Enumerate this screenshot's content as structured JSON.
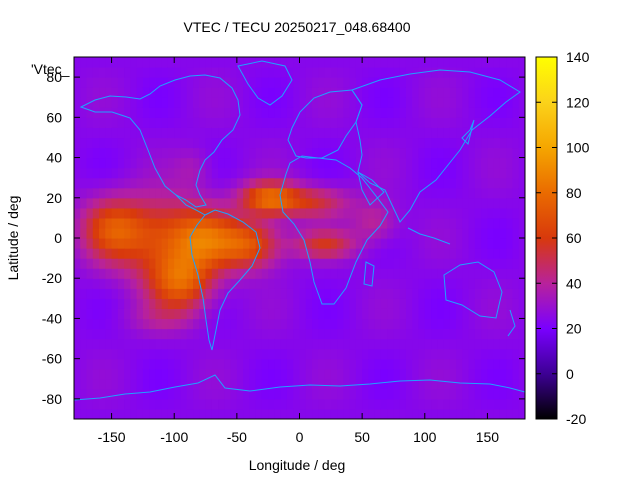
{
  "chart_data": {
    "type": "heatmap",
    "title": "VTEC / TECU 20250217_048.68400",
    "xlabel": "Longitude / deg",
    "ylabel": "Latitude / deg",
    "xlim": [
      -180,
      180
    ],
    "ylim": [
      -90,
      90
    ],
    "x_ticks": [
      -150,
      -100,
      -50,
      0,
      50,
      100,
      150
    ],
    "y_ticks": [
      -80,
      -60,
      -40,
      -20,
      0,
      20,
      40,
      60,
      80
    ],
    "x_tick_labels": [
      "-150",
      "-100",
      "-50",
      "0",
      "50",
      "100",
      "150"
    ],
    "y_tick_labels": [
      "-80",
      "-60",
      "-40",
      "-20",
      "0",
      "20",
      "40",
      "60",
      "80"
    ],
    "colorbar": {
      "range": [
        -20,
        140
      ],
      "ticks": [
        -20,
        0,
        20,
        40,
        60,
        80,
        100,
        120,
        140
      ],
      "tick_labels": [
        "-20",
        "0",
        "20",
        "40",
        "60",
        "80",
        "100",
        "120",
        "140"
      ],
      "palette": [
        "#000000",
        "#3d0094",
        "#7a00ff",
        "#b8229b",
        "#d8390c",
        "#ea6b00",
        "#f5a600",
        "#fbd21a",
        "#ffff00"
      ]
    },
    "legend_label": "'Vtec_",
    "background_level": 24,
    "blobs": [
      {
        "lon": -150,
        "lat": 5,
        "slon": 25,
        "slat": 15,
        "amp": 35
      },
      {
        "lon": -110,
        "lat": 0,
        "slon": 40,
        "slat": 20,
        "amp": 40
      },
      {
        "lon": -95,
        "lat": -22,
        "slon": 25,
        "slat": 14,
        "amp": 45
      },
      {
        "lon": -75,
        "lat": 0,
        "slon": 25,
        "slat": 15,
        "amp": 35
      },
      {
        "lon": -40,
        "lat": -3,
        "slon": 25,
        "slat": 12,
        "amp": 45
      },
      {
        "lon": -25,
        "lat": 20,
        "slon": 22,
        "slat": 8,
        "amp": 50
      },
      {
        "lon": 10,
        "lat": 18,
        "slon": 30,
        "slat": 8,
        "amp": 30
      },
      {
        "lon": 20,
        "lat": -3,
        "slon": 25,
        "slat": 7,
        "amp": 30
      },
      {
        "lon": 60,
        "lat": 8,
        "slon": 18,
        "slat": 10,
        "amp": 18
      },
      {
        "lon": -85,
        "lat": 35,
        "slon": 15,
        "slat": 10,
        "amp": 10
      },
      {
        "lon": -110,
        "lat": -40,
        "slon": 30,
        "slat": 8,
        "amp": 10
      }
    ]
  }
}
